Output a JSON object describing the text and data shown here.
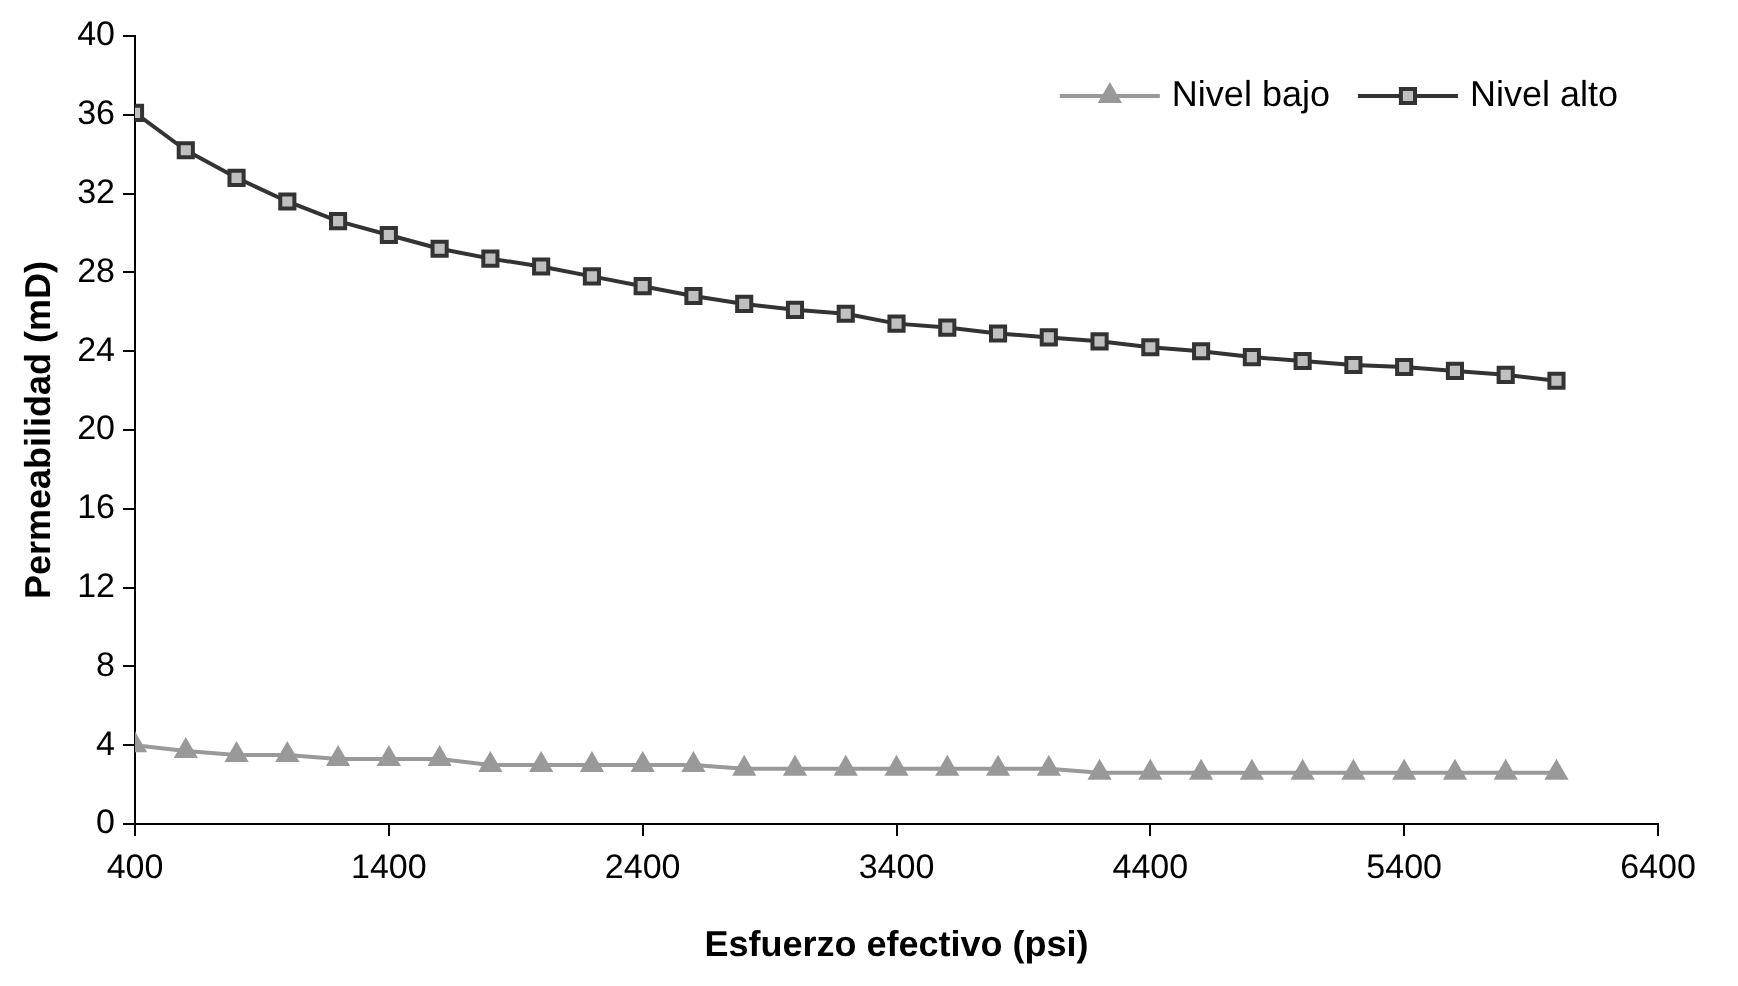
{
  "chart_data": {
    "type": "line",
    "xlabel": "Esfuerzo efectivo (psi)",
    "ylabel": "Permeabilidad (mD)",
    "x": [
      400,
      600,
      800,
      1000,
      1200,
      1400,
      1600,
      1800,
      2000,
      2200,
      2400,
      2600,
      2800,
      3000,
      3200,
      3400,
      3600,
      3800,
      4000,
      4200,
      4400,
      4600,
      4800,
      5000,
      5200,
      5400,
      5600,
      5800,
      6000
    ],
    "series": [
      {
        "name": "Nivel bajo",
        "color": "#999999",
        "marker": "triangle",
        "values": [
          4.0,
          3.7,
          3.5,
          3.5,
          3.3,
          3.3,
          3.3,
          3.0,
          3.0,
          3.0,
          3.0,
          3.0,
          2.8,
          2.8,
          2.8,
          2.8,
          2.8,
          2.8,
          2.8,
          2.6,
          2.6,
          2.6,
          2.6,
          2.6,
          2.6,
          2.6,
          2.6,
          2.6,
          2.6
        ]
      },
      {
        "name": "Nivel alto",
        "color": "#333333",
        "marker": "square",
        "values": [
          36.1,
          34.2,
          32.8,
          31.6,
          30.6,
          29.9,
          29.2,
          28.7,
          28.3,
          27.8,
          27.3,
          26.8,
          26.4,
          26.1,
          25.9,
          25.4,
          25.2,
          24.9,
          24.7,
          24.5,
          24.2,
          24.0,
          23.7,
          23.5,
          23.3,
          23.2,
          23.0,
          22.8,
          22.5
        ]
      }
    ],
    "xlim": [
      400,
      6400
    ],
    "xticks": [
      400,
      1400,
      2400,
      3400,
      4400,
      5400,
      6400
    ],
    "ylim": [
      0,
      40
    ],
    "yticks": [
      0,
      4,
      8,
      12,
      16,
      20,
      24,
      28,
      32,
      36,
      40
    ],
    "grid": false,
    "legend": "top right",
    "line_style": "solid"
  }
}
